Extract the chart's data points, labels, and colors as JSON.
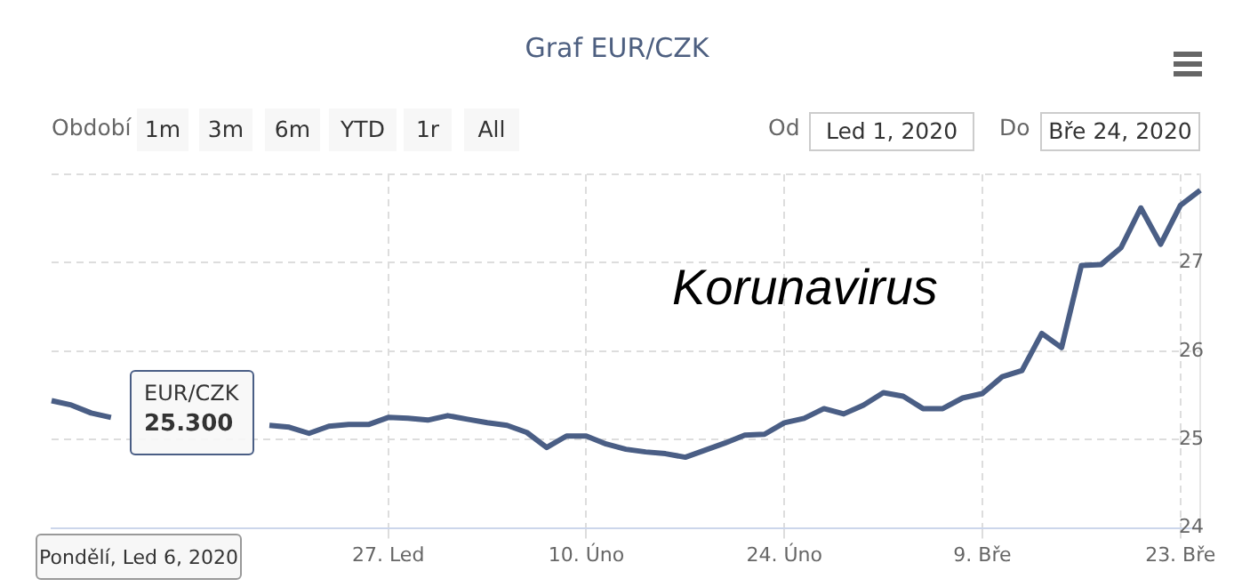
{
  "chart_data": {
    "type": "line",
    "title": "Graf EUR/CZK",
    "categories": [
      null,
      null,
      null,
      null,
      null,
      null,
      null,
      null,
      null,
      null,
      null,
      null,
      null,
      null,
      null,
      null,
      null,
      "27. Led",
      null,
      null,
      null,
      null,
      null,
      null,
      null,
      null,
      null,
      "10. Úno",
      null,
      null,
      null,
      null,
      null,
      null,
      null,
      null,
      null,
      "24. Úno",
      null,
      null,
      null,
      null,
      null,
      null,
      null,
      null,
      null,
      "9. Bře",
      null,
      null,
      null,
      null,
      null,
      null,
      null,
      null,
      null,
      "23. Bře",
      null
    ],
    "values": [
      25.44,
      25.39,
      25.3,
      25.25,
      null,
      null,
      null,
      null,
      null,
      null,
      null,
      25.16,
      25.14,
      25.07,
      25.15,
      25.17,
      25.17,
      25.25,
      25.24,
      25.22,
      25.27,
      25.23,
      25.19,
      25.16,
      25.08,
      24.91,
      25.04,
      25.04,
      24.95,
      24.89,
      24.86,
      24.84,
      24.8,
      24.88,
      24.96,
      25.05,
      25.06,
      25.19,
      25.24,
      25.35,
      25.29,
      25.39,
      25.53,
      25.49,
      25.35,
      25.35,
      25.47,
      25.52,
      25.71,
      25.78,
      26.2,
      26.04,
      26.97,
      26.98,
      27.17,
      27.62,
      27.21,
      27.65,
      27.82
    ],
    "color": "#4a5e85",
    "ylim": [
      24,
      28
    ],
    "yticks": [
      24,
      25,
      26,
      27,
      {
        "value": 28,
        "label": null
      }
    ],
    "grid": true,
    "marker": "none",
    "line_style": "solid",
    "annotations": [
      "Korunavirus",
      "Období",
      "1m",
      "3m",
      "6m",
      "YTD",
      "1r",
      "All",
      "Od",
      "Led 1, 2020",
      "Do",
      "Bře 24, 2020",
      "EUR/CZK",
      "25.300",
      "Pondělí, Led 6, 2020"
    ]
  }
}
